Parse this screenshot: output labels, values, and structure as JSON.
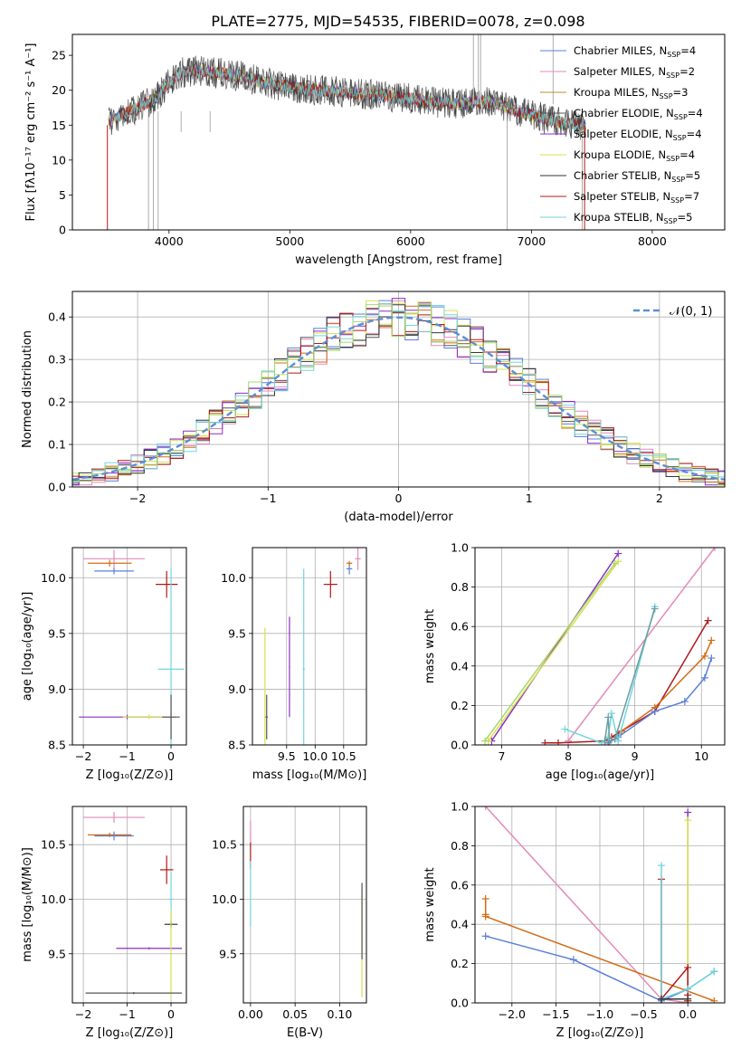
{
  "figure": {
    "title": "PLATE=2775, MJD=54535, FIBERID=0078, z=0.098"
  },
  "chart_data": [
    {
      "id": "spectrum",
      "type": "line",
      "xlabel": "wavelength [Angstrom, rest frame]",
      "ylabel": "Flux [fλ10⁻¹⁷ erg cm⁻² s⁻¹ A⁻¹]",
      "xlim": [
        3200,
        8600
      ],
      "ylim": [
        0,
        28
      ],
      "xticks": [
        4000,
        5000,
        6000,
        7000,
        8000
      ],
      "yticks": [
        0,
        5,
        10,
        15,
        20,
        25
      ],
      "grid": false,
      "legend_placement": "top-right",
      "series": [
        {
          "name": "Chabrier MILES, N_SSP=4",
          "color": "#5b7fd8"
        },
        {
          "name": "Salpeter MILES, N_SSP=2",
          "color": "#e38ab8"
        },
        {
          "name": "Kroupa MILES, N_SSP=3",
          "color": "#b5932c"
        },
        {
          "name": "Chabrier ELODIE, N_SSP=4",
          "color": "#555555"
        },
        {
          "name": "Salpeter ELODIE, N_SSP=4",
          "color": "#8b2fc9"
        },
        {
          "name": "Kroupa ELODIE, N_SSP=4",
          "color": "#d8e04a"
        },
        {
          "name": "Chabrier STELIB, N_SSP=5",
          "color": "#333333"
        },
        {
          "name": "Salpeter STELIB, N_SSP=7",
          "color": "#b01818"
        },
        {
          "name": "Kroupa STELIB, N_SSP=5",
          "color": "#72d6dc"
        }
      ],
      "continuum": [
        [
          3500,
          15.5
        ],
        [
          3600,
          16.5
        ],
        [
          3700,
          17.2
        ],
        [
          3800,
          18
        ],
        [
          3900,
          19
        ],
        [
          4000,
          21
        ],
        [
          4100,
          22.5
        ],
        [
          4200,
          22.8
        ],
        [
          4400,
          22.5
        ],
        [
          4600,
          22
        ],
        [
          4800,
          21
        ],
        [
          5000,
          20.5
        ],
        [
          5200,
          20
        ],
        [
          5400,
          19.8
        ],
        [
          5600,
          19.5
        ],
        [
          5800,
          19.2
        ],
        [
          6000,
          18.8
        ],
        [
          6200,
          18.3
        ],
        [
          6400,
          18
        ],
        [
          6600,
          18.5
        ],
        [
          6700,
          18.2
        ],
        [
          6800,
          17.5
        ],
        [
          7000,
          16.5
        ],
        [
          7200,
          15.5
        ],
        [
          7400,
          15
        ],
        [
          7450,
          14.5
        ]
      ]
    },
    {
      "id": "residuals",
      "type": "histogram",
      "xlabel": "(data-model)/error",
      "ylabel": "Normed distribution",
      "xlim": [
        -2.5,
        2.5
      ],
      "ylim": [
        0,
        0.46
      ],
      "xticks": [
        -2,
        -1,
        0,
        1,
        2
      ],
      "yticks": [
        0.0,
        0.1,
        0.2,
        0.3,
        0.4
      ],
      "grid": true,
      "legend_placement": "top-right",
      "gaussian_label": "𝒩(0, 1)",
      "gaussian_color": "#5b8fd6"
    },
    {
      "id": "age-vs-Z",
      "type": "scatter",
      "xlabel": "Z [log₁₀(Z/Z⊙)]",
      "ylabel": "age  [log₁₀(age/yr)]",
      "xlim": [
        -2.25,
        0.35
      ],
      "ylim": [
        8.5,
        10.27
      ],
      "xticks": [
        -2,
        -1,
        0
      ],
      "yticks": [
        8.5,
        9.0,
        9.5,
        10.0
      ],
      "grid": true,
      "errorbars": [
        {
          "color": "#e38ab8",
          "x": -1.3,
          "y": 10.17,
          "xerr": 0.7,
          "yerr": 0.08
        },
        {
          "color": "#d26d18",
          "x": -1.4,
          "y": 10.13,
          "xerr": 0.5,
          "yerr": 0.03
        },
        {
          "color": "#5b7fd8",
          "x": -1.3,
          "y": 10.06,
          "xerr": 0.45,
          "yerr": 0.03
        },
        {
          "color": "#b01818",
          "x": -0.1,
          "y": 9.94,
          "xerr": 0.25,
          "yerr": 0.12
        },
        {
          "color": "#72d6dc",
          "x": 0.0,
          "y": 9.18,
          "xerr": 0.3,
          "yerr": 0.9
        },
        {
          "color": "#8b2fc9",
          "x": -1.0,
          "y": 8.75,
          "xerr": 1.1,
          "yerr": 0.02
        },
        {
          "color": "#d8e04a",
          "x": -0.5,
          "y": 8.75,
          "xerr": 0.6,
          "yerr": 0.02
        },
        {
          "color": "#555555",
          "x": 0.0,
          "y": 8.75,
          "xerr": 0.2,
          "yerr": 0.2
        }
      ]
    },
    {
      "id": "age-vs-mass",
      "type": "scatter",
      "xlabel": "mass [log₁₀(M/M⊙)]",
      "ylabel": "",
      "xlim": [
        8.9,
        10.9
      ],
      "ylim": [
        8.5,
        10.27
      ],
      "xticks": [
        9.5,
        10.0,
        10.5
      ],
      "yticks": [
        8.5,
        9.0,
        9.5,
        10.0
      ],
      "grid": true,
      "errorbars": [
        {
          "color": "#e38ab8",
          "x": 10.75,
          "y": 10.17,
          "xerr": 0.05,
          "yerr": 0.1
        },
        {
          "color": "#5b7fd8",
          "x": 10.6,
          "y": 10.08,
          "xerr": 0.05,
          "yerr": 0.05
        },
        {
          "color": "#d26d18",
          "x": 10.6,
          "y": 10.13,
          "xerr": 0.05,
          "yerr": 0.02
        },
        {
          "color": "#b01818",
          "x": 10.27,
          "y": 9.94,
          "xerr": 0.12,
          "yerr": 0.12
        },
        {
          "color": "#72d6dc",
          "x": 9.8,
          "y": 9.18,
          "xerr": 0.02,
          "yerr": 0.9
        },
        {
          "color": "#8b2fc9",
          "x": 9.55,
          "y": 9.2,
          "xerr": 0.01,
          "yerr": 0.45
        },
        {
          "color": "#d8e04a",
          "x": 9.12,
          "y": 8.75,
          "xerr": 0.02,
          "yerr": 0.8
        },
        {
          "color": "#555555",
          "x": 9.15,
          "y": 8.75,
          "xerr": 0.02,
          "yerr": 0.2
        }
      ]
    },
    {
      "id": "weight-vs-age",
      "type": "line",
      "xlabel": "age  [log₁₀(age/yr)]",
      "ylabel": "mass weight",
      "xlim": [
        6.6,
        10.35
      ],
      "ylim": [
        0,
        1
      ],
      "xticks": [
        7,
        8,
        9,
        10
      ],
      "yticks": [
        0.0,
        0.2,
        0.4,
        0.6,
        0.8,
        1.0
      ],
      "grid": true,
      "series": [
        {
          "color": "#e38ab8",
          "x": [
            8.0,
            10.2
          ],
          "y": [
            0.02,
            1.0
          ]
        },
        {
          "color": "#8b2fc9",
          "x": [
            6.85,
            8.75
          ],
          "y": [
            0.02,
            0.97
          ]
        },
        {
          "color": "#d8e04a",
          "x": [
            6.8,
            8.75
          ],
          "y": [
            0.02,
            0.93
          ]
        },
        {
          "color": "#a6d86b",
          "x": [
            6.75,
            8.7
          ],
          "y": [
            0.02,
            0.92
          ]
        },
        {
          "color": "#b01818",
          "x": [
            7.65,
            7.85,
            8.55,
            8.65,
            8.8,
            9.3,
            10.1
          ],
          "y": [
            0.01,
            0.01,
            0.02,
            0.04,
            0.07,
            0.17,
            0.63
          ]
        },
        {
          "color": "#d26d18",
          "x": [
            8.6,
            8.7,
            8.8,
            9.3,
            10.05,
            10.15
          ],
          "y": [
            0.01,
            0.03,
            0.07,
            0.19,
            0.45,
            0.53
          ]
        },
        {
          "color": "#5b7fd8",
          "x": [
            8.6,
            8.75,
            9.3,
            9.75,
            10.05,
            10.15
          ],
          "y": [
            0.01,
            0.04,
            0.17,
            0.22,
            0.34,
            0.44
          ]
        },
        {
          "color": "#72d6dc",
          "x": [
            7.95,
            8.5,
            8.6,
            8.65,
            8.75,
            9.3
          ],
          "y": [
            0.08,
            0.01,
            0.04,
            0.16,
            0.02,
            0.7
          ]
        },
        {
          "color": "#6b9da2",
          "x": [
            8.55,
            8.6,
            8.62,
            8.7,
            9.3
          ],
          "y": [
            0.02,
            0.14,
            0.02,
            0.03,
            0.69
          ]
        }
      ]
    },
    {
      "id": "mass-vs-Z",
      "type": "scatter",
      "xlabel": "Z [log₁₀(Z/Z⊙)]",
      "ylabel": "mass [log₁₀(M/M⊙)]",
      "xlim": [
        -2.25,
        0.35
      ],
      "ylim": [
        9.05,
        10.85
      ],
      "xticks": [
        -2,
        -1,
        0
      ],
      "yticks": [
        9.5,
        10.0,
        10.5
      ],
      "grid": true,
      "errorbars": [
        {
          "color": "#e38ab8",
          "x": -1.3,
          "y": 10.75,
          "xerr": 0.7,
          "yerr": 0.05
        },
        {
          "color": "#d26d18",
          "x": -1.4,
          "y": 10.59,
          "xerr": 0.5,
          "yerr": 0.02
        },
        {
          "color": "#5b7fd8",
          "x": -1.3,
          "y": 10.58,
          "xerr": 0.45,
          "yerr": 0.04
        },
        {
          "color": "#b01818",
          "x": -0.1,
          "y": 10.27,
          "xerr": 0.15,
          "yerr": 0.13
        },
        {
          "color": "#72d6dc",
          "x": 0.0,
          "y": 10.0,
          "xerr": 0.05,
          "yerr": 0.25
        },
        {
          "color": "#333333",
          "x": 0.0,
          "y": 9.77,
          "xerr": 0.15,
          "yerr": 0.03
        },
        {
          "color": "#8b2fc9",
          "x": -0.5,
          "y": 9.55,
          "xerr": 0.75,
          "yerr": 0.01
        },
        {
          "color": "#d8e04a",
          "x": 0.0,
          "y": 9.5,
          "xerr": 0.02,
          "yerr": 0.4
        },
        {
          "color": "#555555",
          "x": -0.85,
          "y": 9.14,
          "xerr": 1.1,
          "yerr": 0.01
        }
      ]
    },
    {
      "id": "mass-vs-ebv",
      "type": "scatter",
      "xlabel": "E(B-V)",
      "ylabel": "",
      "xlim": [
        -0.008,
        0.13
      ],
      "ylim": [
        9.05,
        10.85
      ],
      "xticks": [
        0.0,
        0.05,
        0.1
      ],
      "yticks": [
        9.5,
        10.0,
        10.5
      ],
      "grid": true,
      "errorbars": [
        {
          "color": "#e38ab8",
          "x": 0.0,
          "y": 10.6,
          "xerr": 0.0005,
          "yerr": 0.12
        },
        {
          "color": "#b01818",
          "x": 0.0,
          "y": 10.4,
          "xerr": 0.0005,
          "yerr": 0.12
        },
        {
          "color": "#72d6dc",
          "x": 0.0,
          "y": 10.05,
          "xerr": 0.0005,
          "yerr": 0.3
        },
        {
          "color": "#d8e04a",
          "x": 0.125,
          "y": 9.6,
          "xerr": 0.0005,
          "yerr": 0.5
        },
        {
          "color": "#555555",
          "x": 0.125,
          "y": 9.8,
          "xerr": 0.0005,
          "yerr": 0.35
        }
      ]
    },
    {
      "id": "weight-vs-Z",
      "type": "line",
      "xlabel": "Z [log₁₀(Z/Z⊙)]",
      "ylabel": "mass weight",
      "xlim": [
        -2.42,
        0.42
      ],
      "ylim": [
        0,
        1
      ],
      "xticks": [
        -2.0,
        -1.5,
        -1.0,
        -0.5,
        0.0
      ],
      "yticks": [
        0.0,
        0.2,
        0.4,
        0.6,
        0.8,
        1.0
      ],
      "grid": true,
      "series": [
        {
          "color": "#e38ab8",
          "x": [
            -2.3,
            -0.3,
            0.0
          ],
          "y": [
            1.0,
            0.02,
            0.0
          ]
        },
        {
          "color": "#d26d18",
          "x": [
            -2.3,
            -2.3,
            -2.3,
            0.3
          ],
          "y": [
            0.45,
            0.53,
            0.44,
            0.01
          ]
        },
        {
          "color": "#5b7fd8",
          "x": [
            -2.3,
            -1.3,
            -0.3,
            0.0,
            0.3
          ],
          "y": [
            0.34,
            0.22,
            0.01,
            0.07,
            0.16
          ]
        },
        {
          "color": "#8b2fc9",
          "x": [
            0.0,
            0.0
          ],
          "y": [
            0.97,
            0.01
          ]
        },
        {
          "color": "#d8e04a",
          "x": [
            0.0,
            0.0
          ],
          "y": [
            0.93,
            0.01
          ]
        },
        {
          "color": "#b01818",
          "x": [
            -0.3,
            -0.3,
            0.0,
            0.0,
            0.0
          ],
          "y": [
            0.63,
            0.02,
            0.18,
            0.01,
            0.04
          ]
        },
        {
          "color": "#72d6dc",
          "x": [
            -0.3,
            -0.3,
            0.0,
            0.3
          ],
          "y": [
            0.7,
            0.02,
            0.07,
            0.16
          ]
        },
        {
          "color": "#333333",
          "x": [
            -0.3,
            0.0
          ],
          "y": [
            0.02,
            0.02
          ]
        }
      ]
    }
  ]
}
